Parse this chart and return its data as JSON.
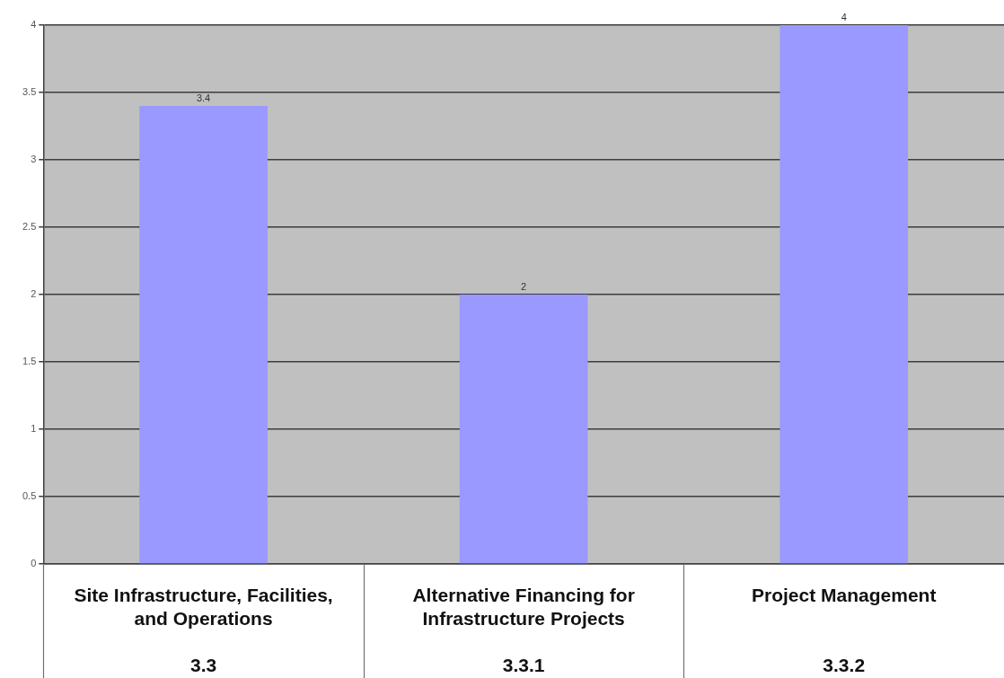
{
  "chart_data": {
    "type": "bar",
    "categories": [
      "Site Infrastructure, Facilities, and Operations\n3.3",
      "Alternative Financing for Infrastructure Projects\n3.3.1",
      "Project Management\n3.3.2"
    ],
    "values": [
      3.4,
      2,
      4
    ],
    "color": "#9999ff",
    "ylim": [
      0,
      4
    ],
    "yticks": [
      0,
      0.5,
      1,
      1.5,
      2,
      2.5,
      3,
      3.5,
      4
    ],
    "grid": "y",
    "data_labels": true
  }
}
